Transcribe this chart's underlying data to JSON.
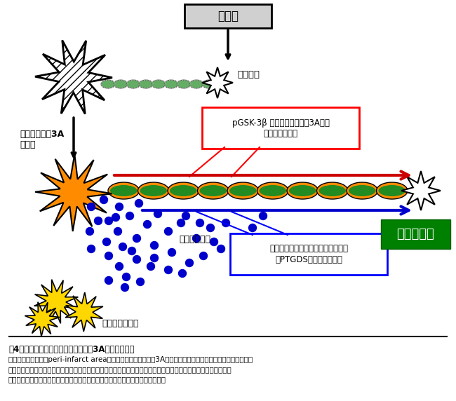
{
  "title": "図4　脳梗塞後におけるセマフォリン3A阻害薬の効果",
  "caption_bold": "図4　脳梗塞後におけるセマフォリン3A阻害薬の効果",
  "caption_normal": "脳梗塞後亜急性期のperi-infarct areaに発現するセマフォリン3Aの機能を阻害することで、神経細胞内の情報\n伝達系（赤矢印）を調節し、また、アストロサイトの活性化やアストロサイトから分泌されるエクソソームの制御\n（青矢印）を介して、慢性期の軸索再生やラットの運動機能回復が促進される。",
  "bg_color": "#ffffff",
  "box_noukosoku_text": "脳梗塞",
  "box_noukosoku_bg": "#d0d0d0",
  "box_noukosoku_border": "#000000",
  "label_jikuson": "軸索損傷",
  "label_sema": "セマフォリン3A\nを阻害",
  "label_exosome": "エクソソーム",
  "label_astrocyte": "アストロサイト",
  "label_jikuson_saisei": "軸索再生！",
  "box_pgsk_text": "pGSK-3β 等のセマフォリン3A関連\nシグナル蛋白群",
  "box_exo_text": "アストロサイト由来のエクソソーム\n（PTGDS）を介した効果",
  "red_arrow_color": "#cc0000",
  "blue_arrow_color": "#0000cc",
  "green_box_color": "#008000",
  "orange_color": "#FF8C00",
  "yellow_color": "#FFD700",
  "neuron_body_color": "#FF8C00",
  "axon_body_color": "#228B22",
  "dot_color": "#0000cc"
}
